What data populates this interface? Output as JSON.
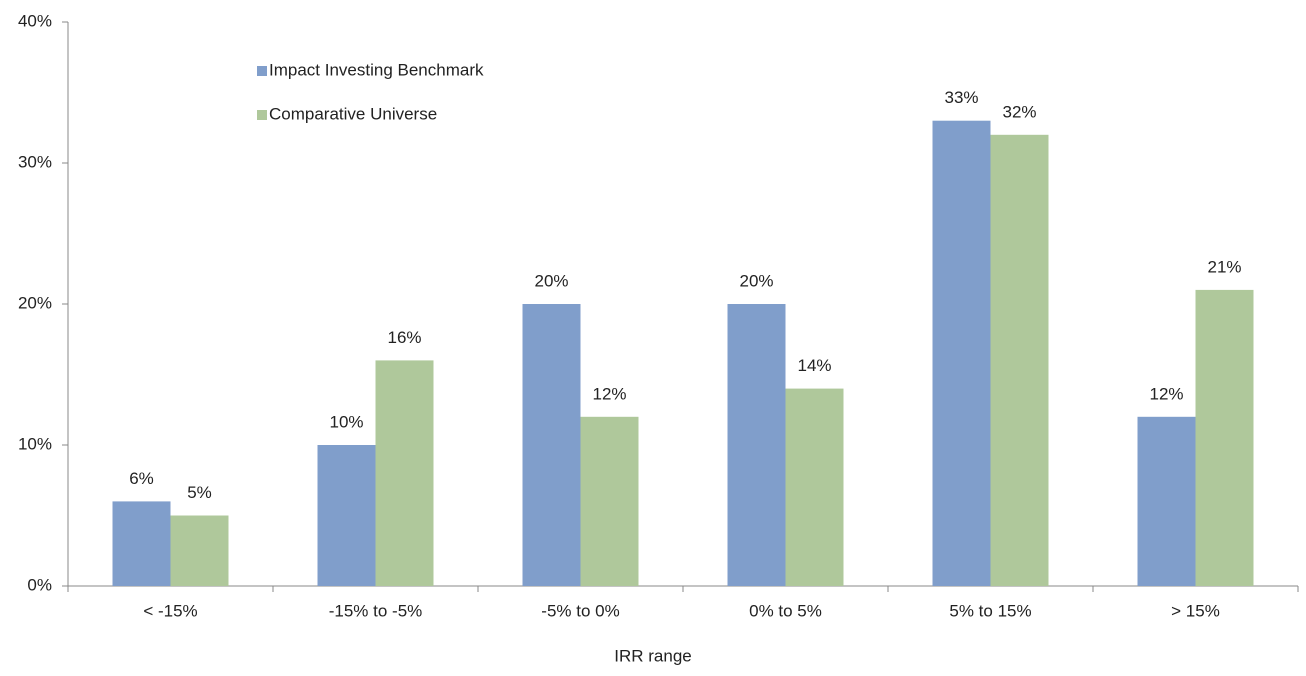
{
  "chart_data": {
    "type": "bar",
    "x_label": "IRR range",
    "categories": [
      "< -15%",
      "-15% to -5%",
      "-5% to 0%",
      "0% to 5%",
      "5% to 15%",
      "> 15%"
    ],
    "series": [
      {
        "name": "Impact Investing Benchmark",
        "color": "#809ecb",
        "values": [
          6,
          10,
          20,
          20,
          33,
          12
        ],
        "value_labels": [
          "6%",
          "10%",
          "20%",
          "20%",
          "33%",
          "12%"
        ]
      },
      {
        "name": "Comparative Universe",
        "color": "#afc89b",
        "values": [
          5,
          16,
          12,
          14,
          32,
          21
        ],
        "value_labels": [
          "5%",
          "16%",
          "12%",
          "14%",
          "32%",
          "21%"
        ]
      }
    ],
    "ylim": [
      0,
      40
    ],
    "yticks": [
      {
        "value": 0,
        "label": "0%"
      },
      {
        "value": 10,
        "label": "10%"
      },
      {
        "value": 20,
        "label": "20%"
      },
      {
        "value": 30,
        "label": "30%"
      },
      {
        "value": 40,
        "label": "40%"
      }
    ],
    "grid": false,
    "legend": "top-left"
  }
}
